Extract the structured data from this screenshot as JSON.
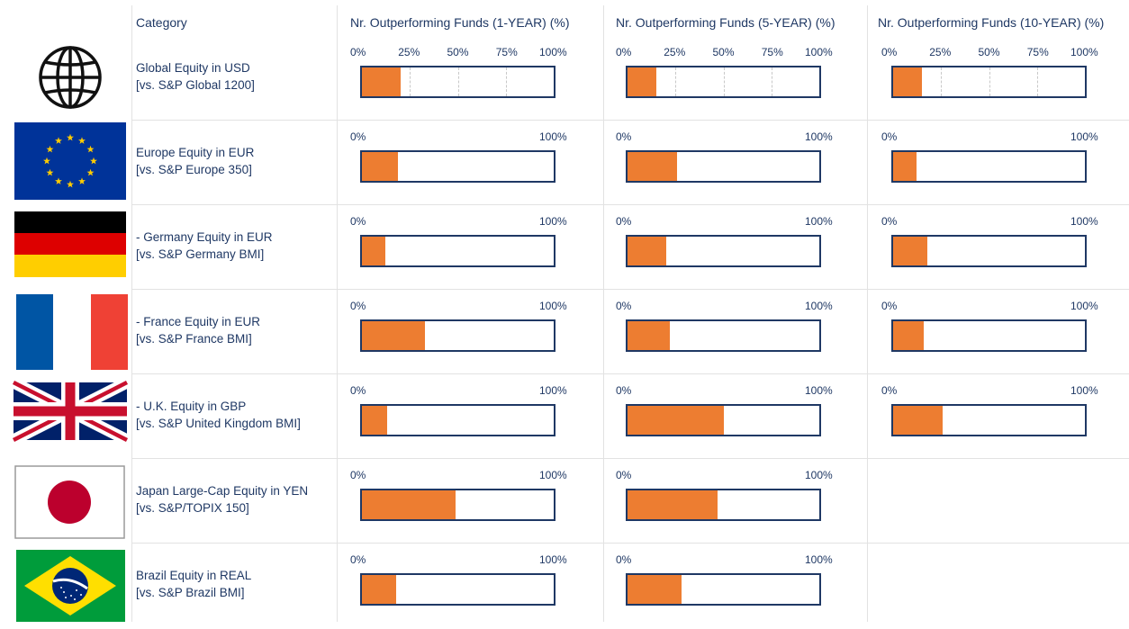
{
  "header": {
    "category": "Category",
    "col_1y": "Nr. Outperforming Funds (1-YEAR) (%)",
    "col_5y": "Nr. Outperforming Funds (5-YEAR) (%)",
    "col_10y": "Nr. Outperforming Funds (10-YEAR) (%)"
  },
  "colors": {
    "fill": "#ed7d31",
    "border": "#1f3864",
    "text": "#1f3864"
  },
  "chart_data": {
    "type": "bar",
    "orientation": "horizontal",
    "unit": "%",
    "xlim": [
      0,
      100
    ],
    "tick_labels_full": [
      "0%",
      "25%",
      "50%",
      "75%",
      "100%"
    ],
    "tick_labels_short": [
      "0%",
      "100%"
    ],
    "columns": [
      "Nr. Outperforming Funds (1-YEAR) (%)",
      "Nr. Outperforming Funds (5-YEAR) (%)",
      "Nr. Outperforming Funds (10-YEAR) (%)"
    ],
    "rows": [
      {
        "flag": "globe-icon",
        "line1": "Global Equity in USD",
        "line2": "[vs. S&P Global 1200]",
        "values": [
          20,
          15,
          15
        ],
        "full_ticks": true
      },
      {
        "flag": "eu-flag",
        "line1": "Europe Equity in EUR",
        "line2": "[vs. S&P Europe 350]",
        "values": [
          19,
          26,
          12
        ],
        "full_ticks": false
      },
      {
        "flag": "germany-flag",
        "line1": "- Germany Equity in EUR",
        "line2": "[vs. S&P Germany BMI]",
        "values": [
          12,
          20,
          18
        ],
        "full_ticks": false
      },
      {
        "flag": "france-flag",
        "line1": "- France Equity in EUR",
        "line2": "[vs. S&P France BMI]",
        "values": [
          33,
          22,
          16
        ],
        "full_ticks": false
      },
      {
        "flag": "uk-flag",
        "line1": "- U.K. Equity in GBP",
        "line2": "[vs. S&P United Kingdom BMI]",
        "values": [
          13,
          50,
          26
        ],
        "full_ticks": false
      },
      {
        "flag": "japan-flag",
        "line1": "Japan Large-Cap Equity in YEN",
        "line2": "[vs. S&P/TOPIX 150]",
        "values": [
          49,
          47,
          null
        ],
        "full_ticks": false
      },
      {
        "flag": "brazil-flag",
        "line1": "Brazil Equity in REAL",
        "line2": "[vs. S&P Brazil BMI]",
        "values": [
          18,
          28,
          null
        ],
        "full_ticks": false
      }
    ]
  }
}
